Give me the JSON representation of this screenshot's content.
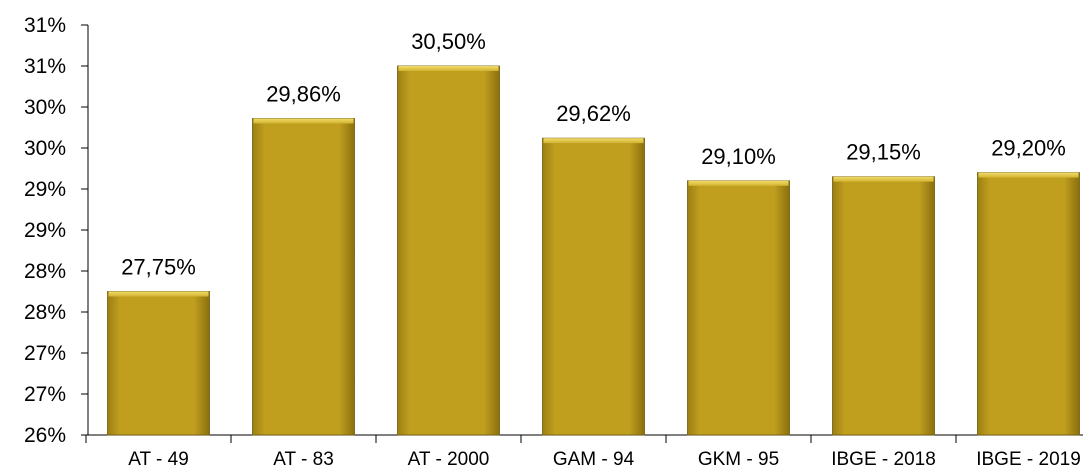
{
  "chart_data": {
    "type": "bar",
    "categories": [
      "AT - 49",
      "AT - 83",
      "AT - 2000",
      "GAM - 94",
      "GKM - 95",
      "IBGE - 2018",
      "IBGE - 2019"
    ],
    "values": [
      27.75,
      29.86,
      30.5,
      29.62,
      29.1,
      29.15,
      29.2
    ],
    "data_labels": [
      "27,75%",
      "29,86%",
      "30,50%",
      "29,62%",
      "29,10%",
      "29,15%",
      "29,20%"
    ],
    "ylim": [
      26,
      31
    ],
    "y_tick_labels": [
      "26%",
      "27%",
      "27%",
      "28%",
      "28%",
      "29%",
      "29%",
      "30%",
      "30%",
      "31%",
      "31%"
    ],
    "title": "",
    "xlabel": "",
    "ylabel": "",
    "grid": false,
    "legend": "none",
    "bar_color": "#C09E1E",
    "bar_top_color": "#E6C84A",
    "bar_edge_color": "#6E5A0A"
  }
}
